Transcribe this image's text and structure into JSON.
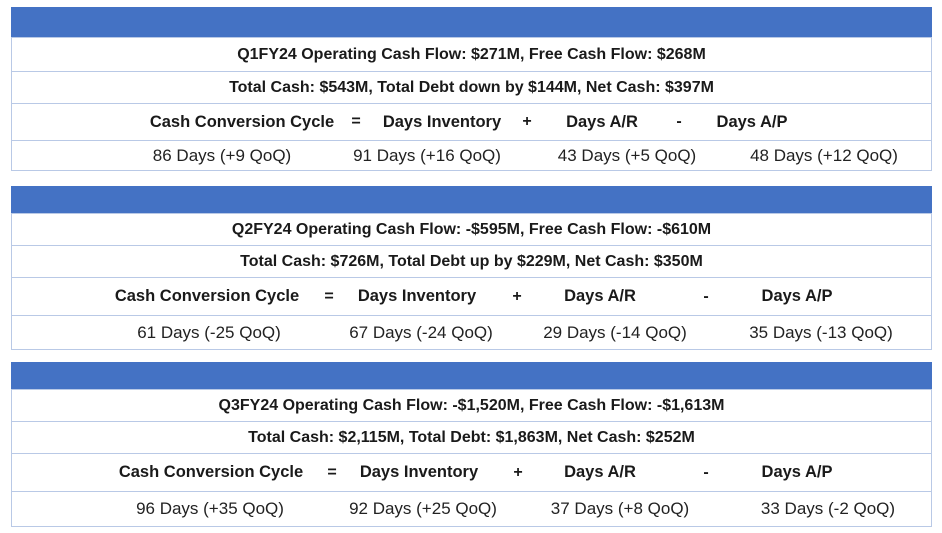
{
  "panels": [
    {
      "headline": "Q1FY24 Operating Cash Flow: $271M, Free Cash Flow: $268M",
      "cash_line": "Total Cash: $543M, Total Debt down by $144M, Net Cash: $397M",
      "formula": {
        "ccc": "Cash Conversion Cycle",
        "eq": "=",
        "inv": "Days Inventory",
        "plus": "+",
        "ar": "Days A/R",
        "minus": "-",
        "ap": "Days A/P"
      },
      "values": {
        "ccc": "86 Days (+9 QoQ)",
        "inv": "91 Days (+16 QoQ)",
        "ar": "43 Days (+5 QoQ)",
        "ap": "48 Days (+12 QoQ)"
      }
    },
    {
      "headline": "Q2FY24 Operating Cash Flow: -$595M, Free Cash Flow: -$610M",
      "cash_line": "Total Cash: $726M, Total Debt up by $229M, Net Cash: $350M",
      "formula": {
        "ccc": "Cash Conversion Cycle",
        "eq": "=",
        "inv": "Days Inventory",
        "plus": "+",
        "ar": "Days A/R",
        "minus": "-",
        "ap": "Days A/P"
      },
      "values": {
        "ccc": "61 Days (-25 QoQ)",
        "inv": "67 Days (-24 QoQ)",
        "ar": "29 Days (-14 QoQ)",
        "ap": "35 Days (-13 QoQ)"
      }
    },
    {
      "headline": "Q3FY24 Operating Cash Flow: -$1,520M, Free Cash Flow: -$1,613M",
      "cash_line": "Total Cash: $2,115M, Total Debt: $1,863M, Net Cash: $252M",
      "formula": {
        "ccc": "Cash Conversion Cycle",
        "eq": "=",
        "inv": "Days Inventory",
        "plus": "+",
        "ar": "Days A/R",
        "minus": "-",
        "ap": "Days A/P"
      },
      "values": {
        "ccc": "96 Days (+35 QoQ)",
        "inv": "92 Days (+25 QoQ)",
        "ar": "37 Days (+8 QoQ)",
        "ap": "33 Days (-2 QoQ)"
      }
    }
  ],
  "colors": {
    "header_bar": "#4472c4",
    "border": "#b9c9e6"
  }
}
